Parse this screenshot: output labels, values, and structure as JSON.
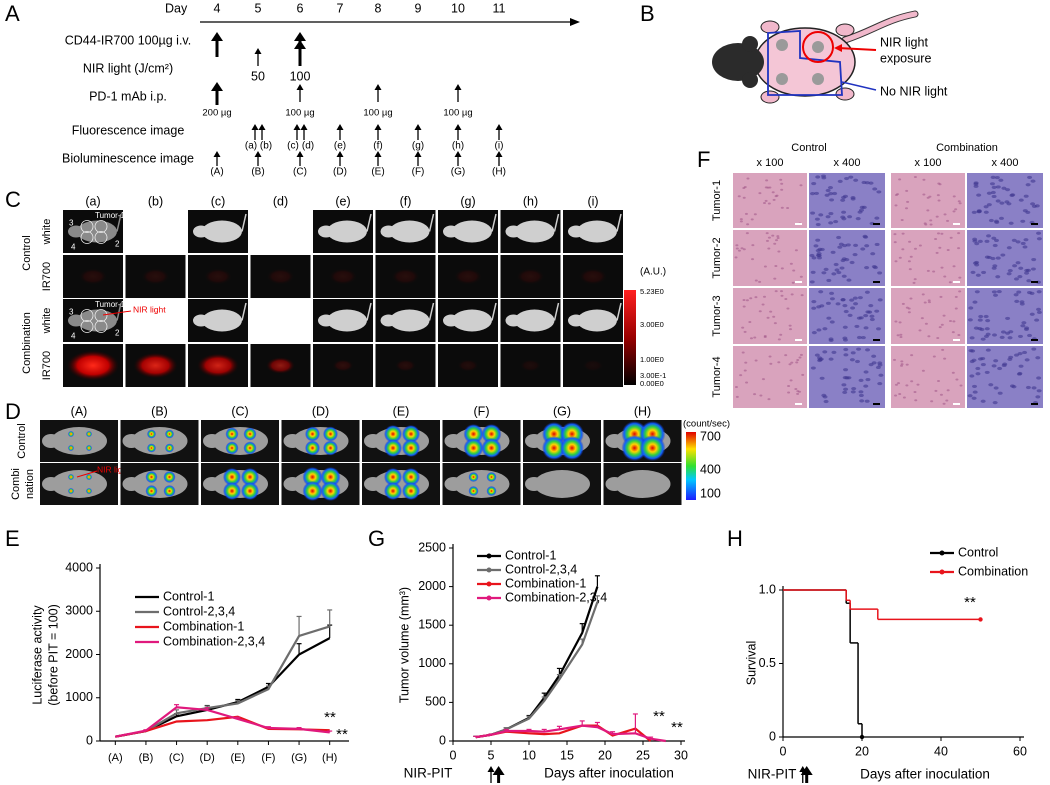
{
  "panel_labels": [
    "A",
    "B",
    "C",
    "D",
    "E",
    "F",
    "G",
    "H"
  ],
  "timeline": {
    "day_label": "Day",
    "days": [
      "4",
      "5",
      "6",
      "7",
      "8",
      "9",
      "10",
      "11"
    ],
    "rows": [
      "CD44-IR700 100µg i.v.",
      "NIR light (J/cm²)",
      "PD-1 mAb i.p.",
      "Fluorescence image",
      "Bioluminescence image"
    ],
    "nir_doses": [
      "50",
      "100"
    ],
    "antibody_doses": [
      "200 µg",
      "100 µg",
      "100 µg",
      "100 µg"
    ],
    "fluorescence_images": [
      "(a)",
      "(b)",
      "(c)",
      "(d)",
      "(e)",
      "(f)",
      "(g)",
      "(h)",
      "(i)"
    ],
    "bioluminescence_images": [
      "(A)",
      "(B)",
      "(C)",
      "(D)",
      "(E)",
      "(F)",
      "(G)",
      "(H)"
    ]
  },
  "mouse_diagram": {
    "exposed": [
      "NIR light",
      "exposure"
    ],
    "unexposed": "No NIR light"
  },
  "fluorescence_panel": {
    "columns": [
      "(a)",
      "(b)",
      "(c)",
      "(d)",
      "(e)",
      "(f)",
      "(g)",
      "(h)",
      "(i)"
    ],
    "groups": [
      "Control",
      "Combination"
    ],
    "channels": [
      "white",
      "IR700"
    ],
    "tumor_labels": [
      "Tumor-1",
      "3",
      "4",
      "2"
    ],
    "nir_label": "NIR light",
    "colorbar_unit": "(A.U.)",
    "colorbar_labels": [
      "5.23E0",
      "3.00E0",
      "1.00E0",
      "3.00E-1",
      "0.00E0"
    ]
  },
  "bioluminescence_panel": {
    "columns": [
      "(A)",
      "(B)",
      "(C)",
      "(D)",
      "(E)",
      "(F)",
      "(G)",
      "(H)"
    ],
    "control_label": "Control",
    "combination_label": [
      "Combi",
      "nation"
    ],
    "nir_label": "NIR light",
    "colorbar_unit": "(count/sec)",
    "colorbar_labels": [
      "700",
      "400",
      "100"
    ]
  },
  "histology": {
    "groups": [
      "Control",
      "Combination"
    ],
    "magnifications": [
      "x 100",
      "x 400"
    ],
    "rows": [
      "Tumor-1",
      "Tumor-2",
      "Tumor-3",
      "Tumor-4"
    ]
  },
  "chart_data": [
    {
      "type": "line",
      "categories": [
        "(A)",
        "(B)",
        "(C)",
        "(D)",
        "(E)",
        "(F)",
        "(G)",
        "(H)"
      ],
      "ylabel": [
        "Luciferase activity",
        "(before PIT = 100)"
      ],
      "ylim": [
        0,
        4000
      ],
      "yticks": [
        0,
        1000,
        2000,
        3000,
        4000
      ],
      "series": [
        {
          "name": "Control-1",
          "color": "#000000",
          "values": [
            100,
            230,
            570,
            720,
            900,
            1250,
            2000,
            2380
          ],
          "errors": [
            0,
            20,
            60,
            100,
            60,
            80,
            250,
            300
          ]
        },
        {
          "name": "Control-2,3,4",
          "color": "#6d6d6d",
          "values": [
            100,
            230,
            640,
            760,
            870,
            1200,
            2430,
            2650
          ],
          "errors": [
            0,
            20,
            80,
            50,
            60,
            70,
            450,
            380
          ]
        },
        {
          "name": "Combination-1",
          "color": "#e8141c",
          "values": [
            100,
            230,
            450,
            480,
            560,
            280,
            270,
            250
          ]
        },
        {
          "name": "Combination-2,3,4",
          "color": "#e0197d",
          "values": [
            100,
            240,
            780,
            720,
            510,
            300,
            280,
            200
          ],
          "errors": [
            0,
            20,
            60,
            50,
            40,
            30,
            30,
            30
          ]
        }
      ],
      "annotations": [
        "**",
        "**"
      ]
    },
    {
      "type": "line",
      "xlabel": "Days after inoculation",
      "ylabel": "Tumor volume (mm³)",
      "xlim": [
        0,
        30
      ],
      "xticks": [
        0,
        5,
        10,
        15,
        20,
        25,
        30
      ],
      "ylim": [
        0,
        2500
      ],
      "yticks": [
        0,
        500,
        1000,
        1500,
        2000,
        2500
      ],
      "series": [
        {
          "name": "Control-1",
          "color": "#000000",
          "x": [
            3,
            5,
            7,
            10,
            12,
            14,
            17,
            19
          ],
          "values": [
            50,
            80,
            150,
            300,
            560,
            850,
            1400,
            2000
          ],
          "errors": [
            10,
            10,
            20,
            30,
            60,
            90,
            120,
            140
          ]
        },
        {
          "name": "Control-2,3,4",
          "color": "#6d6d6d",
          "x": [
            3,
            5,
            7,
            10,
            12,
            14,
            17,
            19
          ],
          "values": [
            50,
            80,
            150,
            290,
            520,
            800,
            1250,
            1800
          ],
          "errors": [
            10,
            10,
            20,
            30,
            50,
            60,
            70,
            80
          ]
        },
        {
          "name": "Combination-1",
          "color": "#e8141c",
          "x": [
            3,
            5,
            7,
            10,
            12,
            14,
            17,
            19,
            21,
            24,
            26
          ],
          "values": [
            50,
            80,
            120,
            100,
            90,
            100,
            200,
            200,
            70,
            160,
            0
          ]
        },
        {
          "name": "Combination-2,3,4",
          "color": "#e0197d",
          "x": [
            3,
            5,
            7,
            10,
            12,
            14,
            17,
            19,
            21,
            24,
            26,
            28
          ],
          "values": [
            50,
            80,
            130,
            130,
            120,
            150,
            200,
            180,
            90,
            100,
            30,
            0
          ],
          "errors": [
            10,
            10,
            20,
            20,
            30,
            40,
            60,
            60,
            30,
            250,
            20,
            0
          ]
        }
      ],
      "annotations": [
        "**",
        "**"
      ],
      "treatment_label": "NIR-PIT"
    },
    {
      "type": "step",
      "xlabel": "Days after inoculation",
      "ylabel": "Survival",
      "xlim": [
        0,
        60
      ],
      "xticks": [
        0,
        20,
        40,
        60
      ],
      "ylim": [
        0,
        1
      ],
      "yticks": [
        0,
        0.5,
        {
          "value": 1,
          "label": "1.0"
        }
      ],
      "series": [
        {
          "name": "Control",
          "color": "#000000",
          "x": [
            0,
            16,
            17,
            19,
            20
          ],
          "values": [
            1,
            0.91,
            0.64,
            0.09,
            0
          ]
        },
        {
          "name": "Combination",
          "color": "#e8141c",
          "x": [
            0,
            16,
            17,
            24,
            50
          ],
          "values": [
            1,
            0.93,
            0.87,
            0.8,
            0.8
          ]
        }
      ],
      "annotations": [
        "**"
      ],
      "treatment_label": "NIR-PIT"
    }
  ]
}
